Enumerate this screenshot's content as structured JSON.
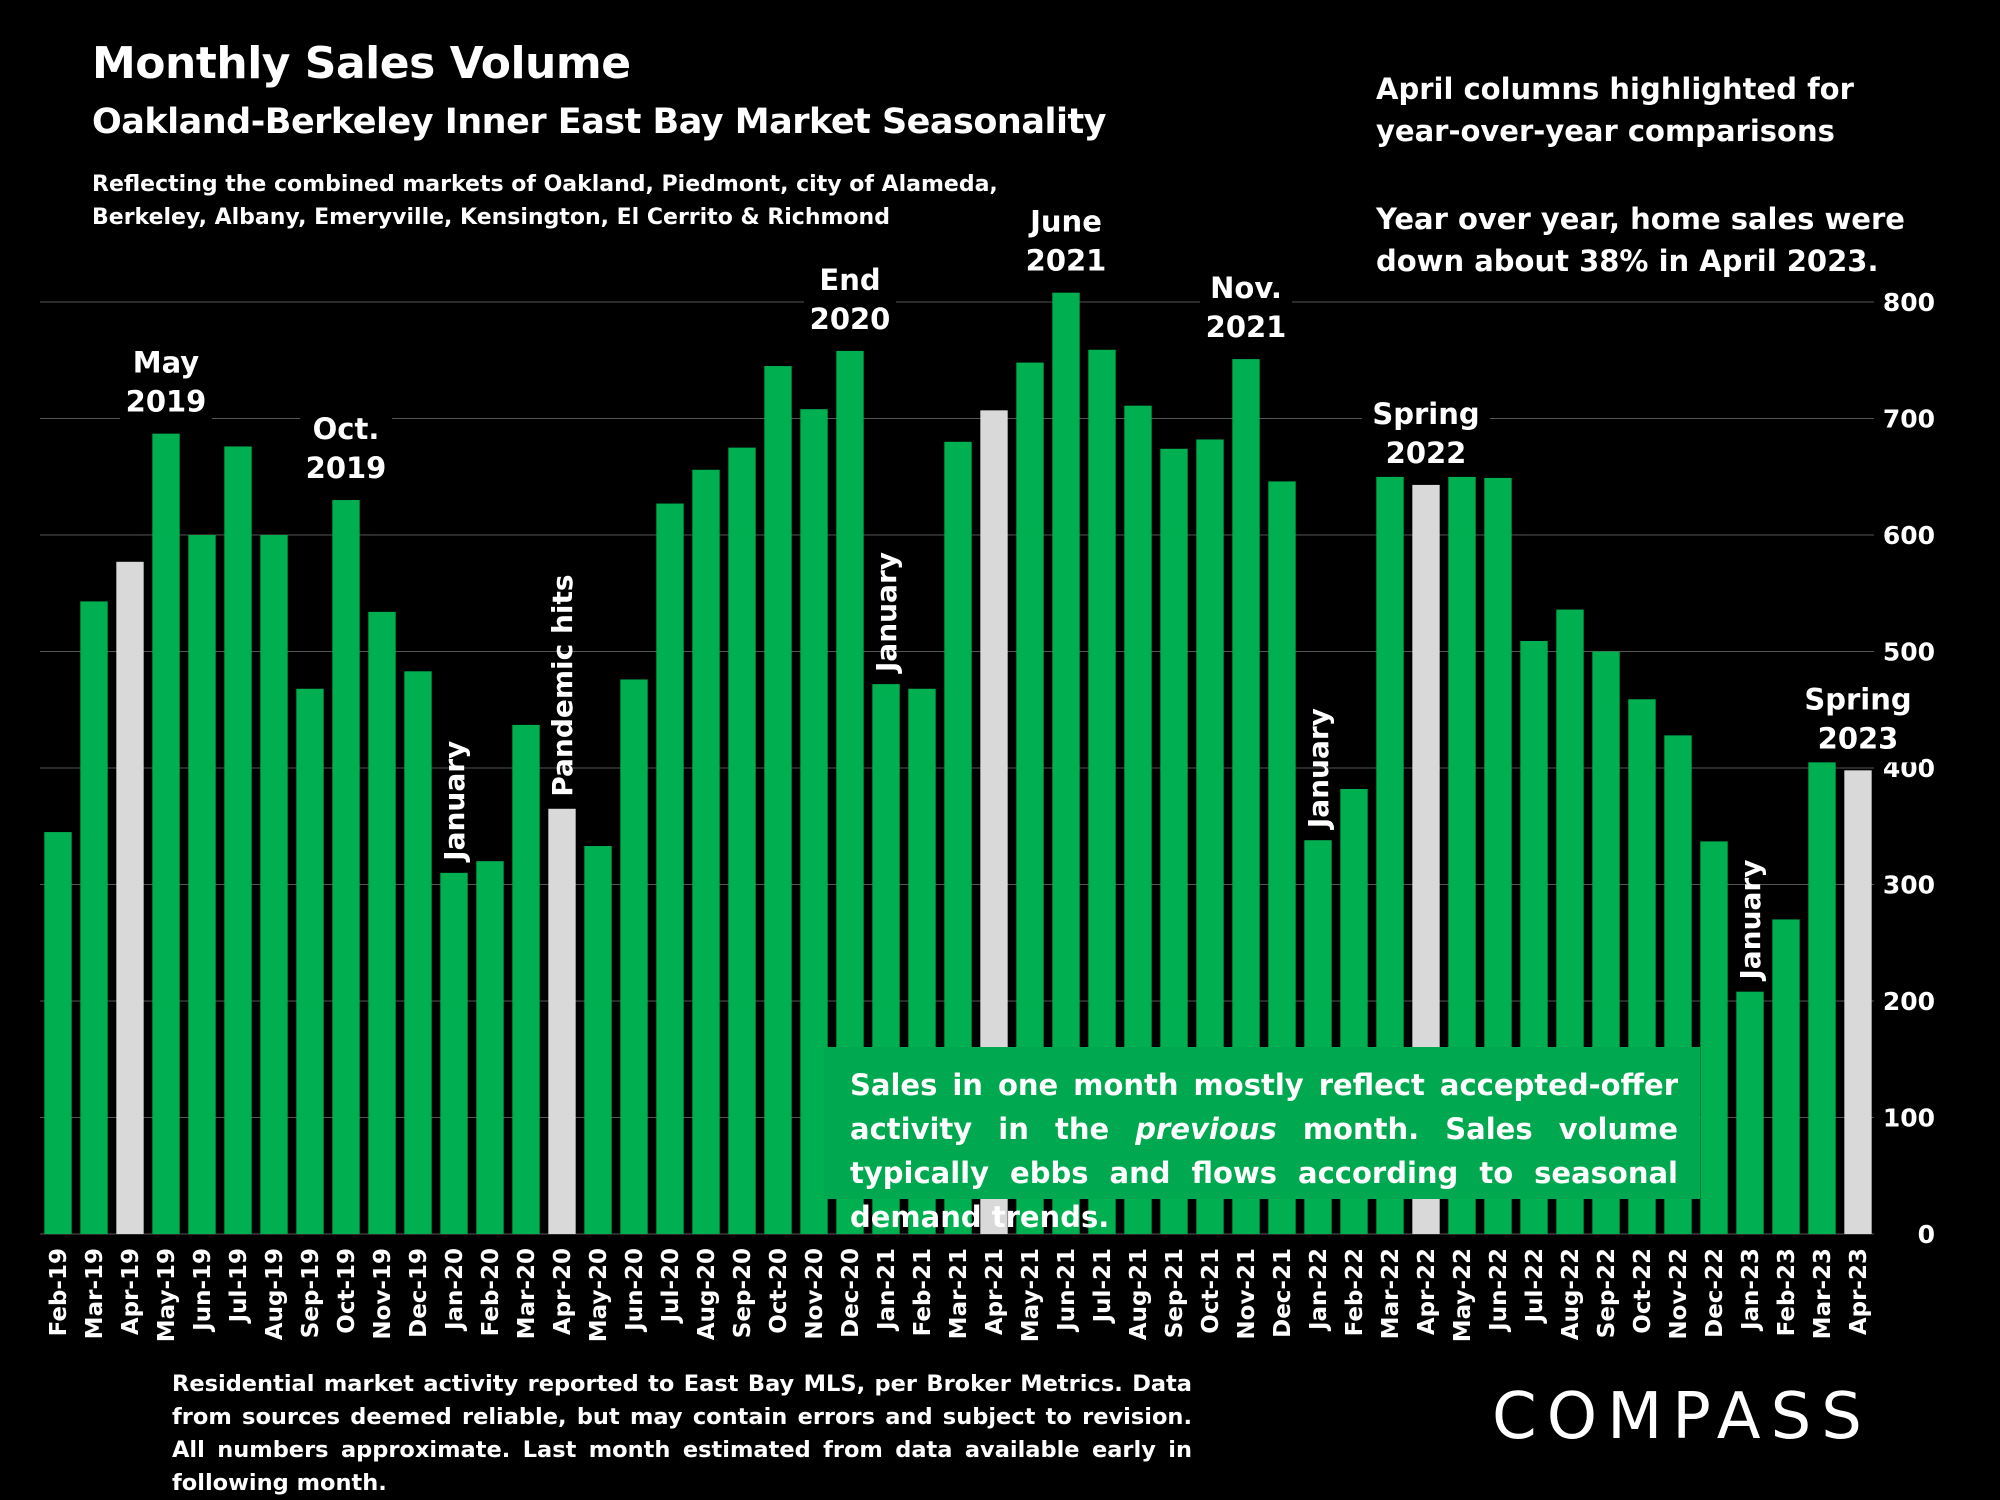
{
  "header": {
    "title": "Monthly Sales Volume",
    "subtitle": "Oakland-Berkeley Inner East Bay Market Seasonality",
    "note_line1": "Reflecting the combined markets of Oakland, Piedmont, city of Alameda,",
    "note_line2": "Berkeley, Albany, Emeryville, Kensington, El Cerrito & Richmond"
  },
  "side_notes": {
    "line1": "April columns highlighted for",
    "line2": "year-over-year comparisons",
    "line3": "Year over year, home sales were",
    "line4": "down about 38% in April 2023."
  },
  "callout": {
    "before": "Sales in one month mostly reflect accepted-offer activity in the ",
    "emphasis": "previous",
    "after": " month. Sales volume typically ebbs and flows according to seasonal demand trends."
  },
  "footer": {
    "text": "Residential market activity reported to East Bay MLS, per Broker Metrics. Data from sources deemed reliable, but may contain errors and subject to revision. All numbers approximate. Last month estimated from data available early in following month."
  },
  "logo": {
    "text": "COMPASS"
  },
  "colors": {
    "bar": "#00b050",
    "highlight": "#d9d9d9",
    "background": "#000000",
    "grid": "#555555"
  },
  "chart_data": {
    "type": "bar",
    "title": "Monthly Sales Volume",
    "subtitle": "Oakland-Berkeley Inner East Bay Market Seasonality",
    "categories": [
      "Feb-19",
      "Mar-19",
      "Apr-19",
      "May-19",
      "Jun-19",
      "Jul-19",
      "Aug-19",
      "Sep-19",
      "Oct-19",
      "Nov-19",
      "Dec-19",
      "Jan-20",
      "Feb-20",
      "Mar-20",
      "Apr-20",
      "May-20",
      "Jun-20",
      "Jul-20",
      "Aug-20",
      "Sep-20",
      "Oct-20",
      "Nov-20",
      "Dec-20",
      "Jan-21",
      "Feb-21",
      "Mar-21",
      "Apr-21",
      "May-21",
      "Jun-21",
      "Jul-21",
      "Aug-21",
      "Sep-21",
      "Oct-21",
      "Nov-21",
      "Dec-21",
      "Jan-22",
      "Feb-22",
      "Mar-22",
      "Apr-22",
      "May-22",
      "Jun-22",
      "Jul-22",
      "Aug-22",
      "Sep-22",
      "Oct-22",
      "Nov-22",
      "Dec-22",
      "Jan-23",
      "Feb-23",
      "Mar-23",
      "Apr-23"
    ],
    "values": [
      345,
      543,
      577,
      687,
      600,
      676,
      600,
      468,
      630,
      534,
      483,
      310,
      320,
      437,
      365,
      333,
      476,
      627,
      656,
      675,
      745,
      708,
      758,
      472,
      468,
      680,
      707,
      748,
      808,
      759,
      711,
      674,
      682,
      751,
      646,
      338,
      382,
      662,
      643,
      683,
      649,
      509,
      536,
      500,
      459,
      428,
      337,
      208,
      270,
      421,
      398
    ],
    "highlight_indices": [
      2,
      14,
      26,
      38,
      50
    ],
    "ylim": [
      0,
      800
    ],
    "yticks": [
      0,
      100,
      200,
      300,
      400,
      500,
      600,
      700,
      800
    ],
    "y_axis_side": "right",
    "grid": true,
    "annotations": [
      {
        "index": 3,
        "lines": [
          "May",
          "2019"
        ],
        "orientation": "horizontal"
      },
      {
        "index": 8,
        "lines": [
          "Oct.",
          "2019"
        ],
        "orientation": "horizontal"
      },
      {
        "index": 11,
        "lines": [
          "January"
        ],
        "orientation": "vertical"
      },
      {
        "index": 14,
        "lines": [
          "Pandemic hits"
        ],
        "orientation": "vertical"
      },
      {
        "index": 22,
        "lines": [
          "End",
          "2020"
        ],
        "orientation": "horizontal"
      },
      {
        "index": 23,
        "lines": [
          "January"
        ],
        "orientation": "vertical"
      },
      {
        "index": 28,
        "lines": [
          "June",
          "2021"
        ],
        "orientation": "horizontal"
      },
      {
        "index": 33,
        "lines": [
          "Nov.",
          "2021"
        ],
        "orientation": "horizontal"
      },
      {
        "index": 35,
        "lines": [
          "January"
        ],
        "orientation": "vertical"
      },
      {
        "index": 38,
        "lines": [
          "Spring",
          "2022"
        ],
        "orientation": "horizontal"
      },
      {
        "index": 47,
        "lines": [
          "January"
        ],
        "orientation": "vertical"
      },
      {
        "index": 50,
        "lines": [
          "Spring",
          "2023"
        ],
        "orientation": "horizontal"
      }
    ]
  }
}
